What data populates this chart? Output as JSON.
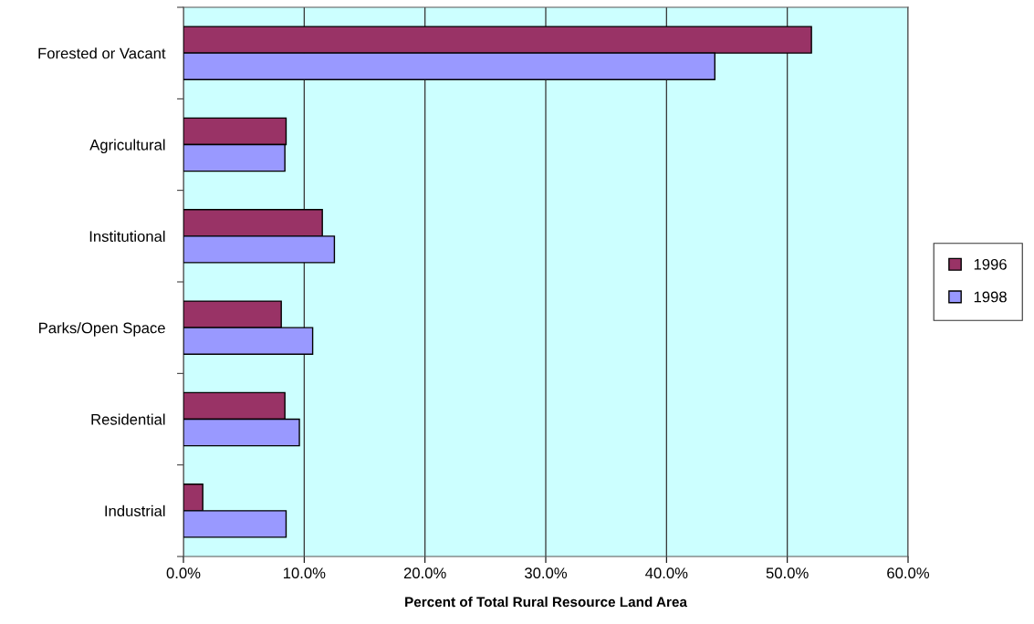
{
  "chart_data": {
    "type": "bar",
    "orientation": "horizontal",
    "xlabel": "Percent of Total Rural Resource Land Area",
    "categories": [
      "Forested or Vacant",
      "Agricultural",
      "Institutional",
      "Parks/Open Space",
      "Residential",
      "Industrial"
    ],
    "series": [
      {
        "name": "1996",
        "color": "#993366",
        "values": [
          52.0,
          8.5,
          11.5,
          8.1,
          8.4,
          1.6
        ]
      },
      {
        "name": "1998",
        "color": "#9999ff",
        "values": [
          44.0,
          8.4,
          12.5,
          10.7,
          9.6,
          8.5
        ]
      }
    ],
    "xlim": [
      0,
      60
    ],
    "xticks": [
      {
        "value": 0,
        "label": "0.0%"
      },
      {
        "value": 10,
        "label": "10.0%"
      },
      {
        "value": 20,
        "label": "20.0%"
      },
      {
        "value": 30,
        "label": "30.0%"
      },
      {
        "value": 40,
        "label": "40.0%"
      },
      {
        "value": 50,
        "label": "50.0%"
      },
      {
        "value": 60,
        "label": "60.0%"
      }
    ],
    "grid": "x",
    "legend": "right"
  }
}
